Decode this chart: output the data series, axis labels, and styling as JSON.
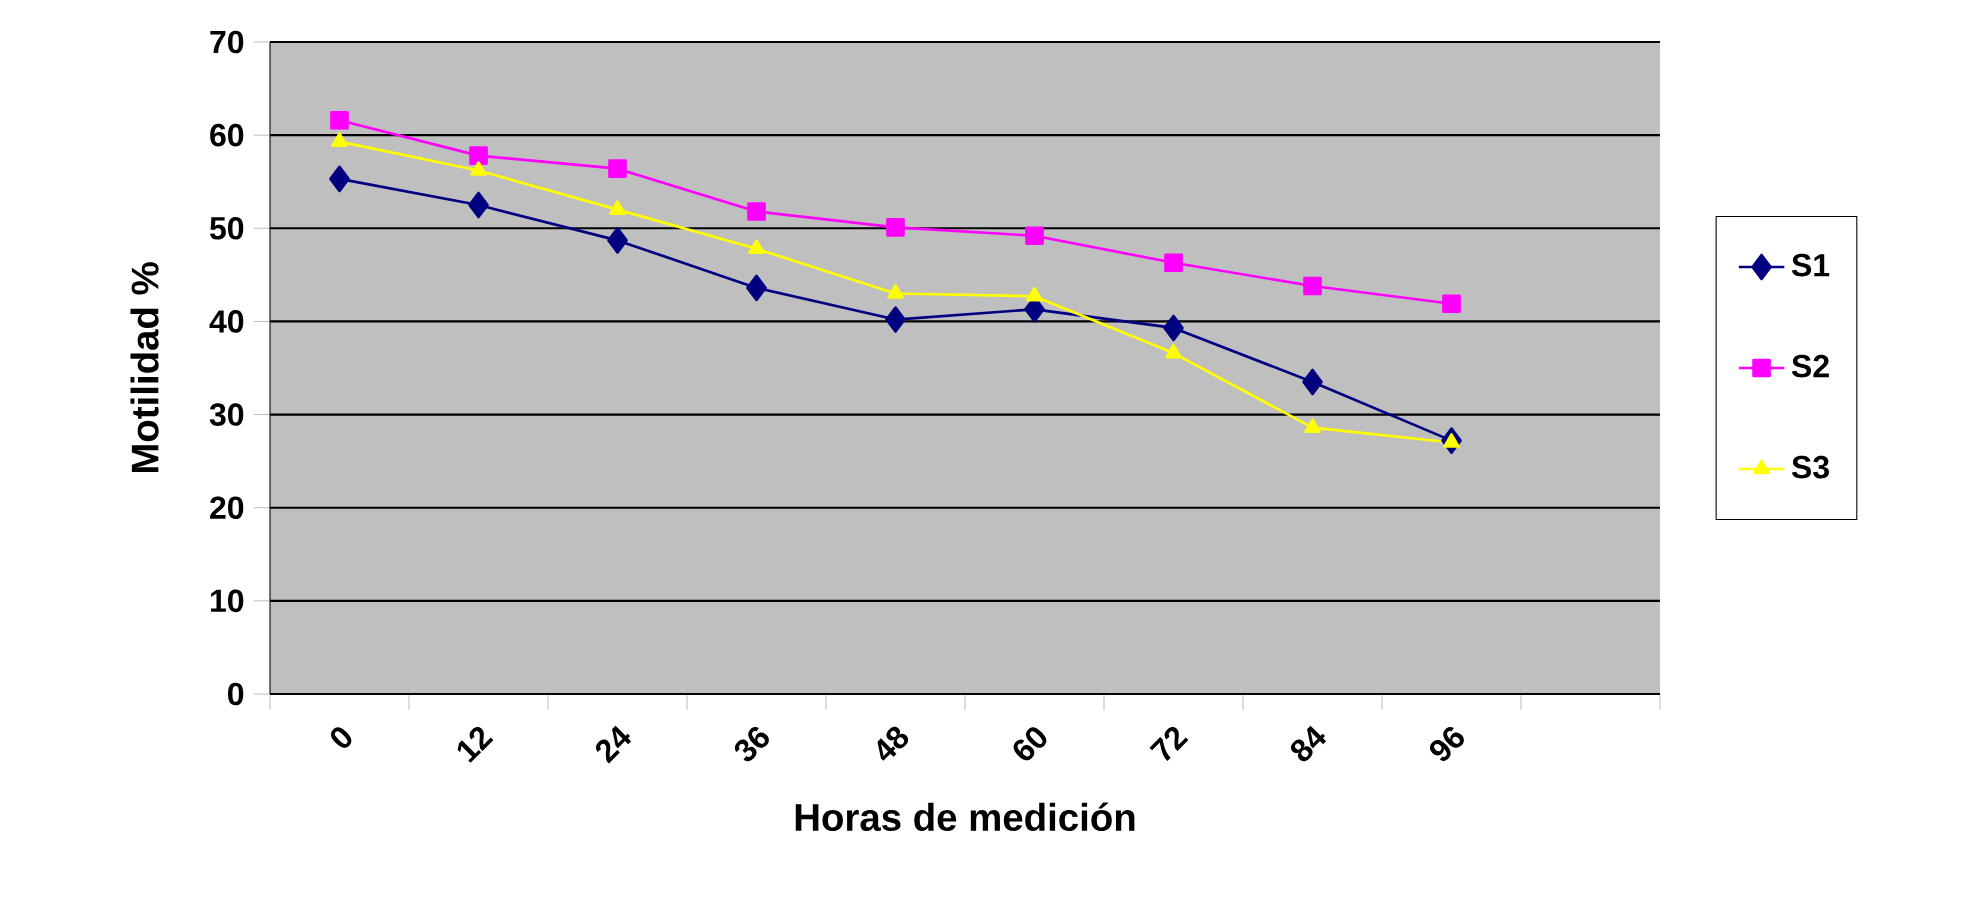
{
  "chart_data": {
    "type": "line",
    "xlabel": "Horas de medición",
    "ylabel": "Motilidad %",
    "categories": [
      "0",
      "12",
      "24",
      "36",
      "48",
      "60",
      "72",
      "84",
      "96",
      null
    ],
    "series": [
      {
        "name": "S1",
        "color": "#000080",
        "marker": "diamond",
        "values": [
          55.3,
          52.5,
          48.7,
          43.6,
          40.2,
          41.3,
          39.3,
          33.5,
          27.2,
          null
        ]
      },
      {
        "name": "S2",
        "color": "#ff00ff",
        "marker": "square",
        "values": [
          61.6,
          57.8,
          56.4,
          51.8,
          50.1,
          49.2,
          46.3,
          43.8,
          41.9,
          null
        ]
      },
      {
        "name": "S3",
        "color": "#ffff00",
        "marker": "triangle",
        "values": [
          59.3,
          56.2,
          52.0,
          47.8,
          43.0,
          42.7,
          36.6,
          28.6,
          27.0,
          null
        ]
      }
    ],
    "ylim": [
      0,
      70
    ],
    "yticks": [
      0,
      10,
      20,
      30,
      40,
      50,
      60,
      70
    ],
    "grid": "y",
    "legend": "right"
  }
}
